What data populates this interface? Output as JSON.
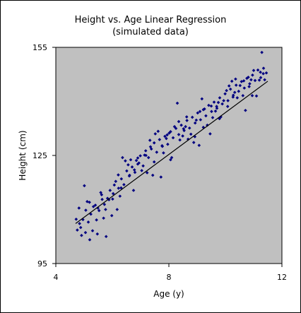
{
  "chart_data": {
    "type": "scatter",
    "title": "Height vs. Age Linear Regression",
    "subtitle": "(simulated data)",
    "xlabel": "Age (y)",
    "ylabel": "Height (cm)",
    "xlim": [
      4,
      12
    ],
    "ylim": [
      95,
      155
    ],
    "xticks": [
      4,
      8,
      12
    ],
    "yticks": [
      95,
      125,
      155
    ],
    "grid": false,
    "colors": {
      "plot_background": "#c0c0c0",
      "markers": "#000080",
      "regression_line": "#000000"
    },
    "regression_line": {
      "x": [
        4.7,
        11.5
      ],
      "y": [
        106.1,
        145.6
      ]
    },
    "series": [
      {
        "points": [
          [
            4.72,
            107.3
          ],
          [
            4.82,
            110.4
          ],
          [
            4.91,
            102.8
          ],
          [
            5.01,
            116.6
          ],
          [
            5.11,
            112.2
          ],
          [
            5.2,
            101.6
          ],
          [
            5.3,
            104.1
          ],
          [
            5.4,
            111.2
          ],
          [
            5.49,
            110.4
          ],
          [
            5.59,
            114.7
          ],
          [
            5.69,
            107.6
          ],
          [
            5.78,
            102.5
          ],
          [
            5.88,
            112.7
          ],
          [
            5.98,
            108.3
          ],
          [
            6.07,
            116.8
          ],
          [
            6.17,
            110.0
          ],
          [
            6.27,
            113.7
          ],
          [
            6.36,
            124.4
          ],
          [
            6.46,
            123.5
          ],
          [
            6.56,
            122.4
          ],
          [
            6.65,
            123.8
          ],
          [
            6.75,
            115.3
          ],
          [
            6.85,
            123.6
          ],
          [
            6.94,
            122.9
          ],
          [
            7.04,
            120.8
          ],
          [
            7.14,
            125.1
          ],
          [
            7.23,
            120.2
          ],
          [
            7.33,
            129.2
          ],
          [
            7.43,
            119.5
          ],
          [
            7.52,
            131.0
          ],
          [
            7.62,
            131.7
          ],
          [
            7.72,
            119.0
          ],
          [
            7.81,
            125.7
          ],
          [
            7.91,
            129.7
          ],
          [
            8.01,
            131.2
          ],
          [
            8.1,
            124.4
          ],
          [
            8.2,
            133.0
          ],
          [
            8.3,
            139.5
          ],
          [
            8.39,
            129.3
          ],
          [
            8.49,
            130.4
          ],
          [
            8.59,
            133.0
          ],
          [
            8.68,
            129.5
          ],
          [
            8.78,
            130.9
          ],
          [
            8.88,
            128.6
          ],
          [
            8.97,
            134.8
          ],
          [
            9.07,
            127.8
          ],
          [
            9.17,
            140.7
          ],
          [
            9.26,
            137.9
          ],
          [
            9.36,
            133.4
          ],
          [
            9.46,
            131.0
          ],
          [
            9.55,
            135.5
          ],
          [
            9.65,
            137.3
          ],
          [
            9.75,
            139.7
          ],
          [
            9.84,
            135.7
          ],
          [
            9.94,
            140.2
          ],
          [
            10.04,
            143.0
          ],
          [
            10.13,
            144.3
          ],
          [
            10.23,
            145.6
          ],
          [
            10.33,
            142.5
          ],
          [
            10.42,
            141.0
          ],
          [
            10.52,
            144.4
          ],
          [
            10.62,
            141.6
          ],
          [
            10.71,
            137.5
          ],
          [
            10.81,
            146.7
          ],
          [
            10.91,
            146.0
          ],
          [
            11.0,
            148.6
          ],
          [
            11.1,
            141.5
          ],
          [
            11.2,
            145.9
          ],
          [
            11.29,
            153.6
          ],
          [
            11.39,
            146.0
          ],
          [
            4.84,
            106.1
          ],
          [
            5.19,
            112.0
          ],
          [
            5.47,
            103.2
          ],
          [
            5.76,
            110.0
          ],
          [
            6.03,
            114.4
          ],
          [
            6.31,
            116.0
          ],
          [
            6.6,
            119.3
          ],
          [
            6.9,
            124.3
          ],
          [
            7.19,
            125.0
          ],
          [
            7.48,
            123.2
          ],
          [
            7.76,
            127.7
          ],
          [
            8.06,
            123.8
          ],
          [
            8.35,
            134.4
          ],
          [
            8.63,
            135.7
          ],
          [
            8.92,
            130.2
          ],
          [
            9.22,
            132.8
          ],
          [
            9.5,
            138.7
          ],
          [
            9.79,
            135.2
          ],
          [
            10.08,
            138.6
          ],
          [
            10.36,
            146.2
          ],
          [
            10.65,
            145.7
          ],
          [
            10.95,
            141.6
          ],
          [
            11.24,
            148.1
          ],
          [
            5.06,
            109.8
          ],
          [
            5.62,
            114.1
          ],
          [
            6.21,
            119.6
          ],
          [
            6.78,
            121.0
          ],
          [
            7.35,
            127.4
          ],
          [
            7.94,
            130.7
          ],
          [
            8.52,
            132.4
          ],
          [
            9.1,
            137.2
          ],
          [
            9.69,
            138.6
          ],
          [
            10.27,
            141.2
          ],
          [
            10.84,
            144.1
          ],
          [
            11.34,
            147.7
          ],
          [
            4.76,
            104.3
          ],
          [
            4.88,
            105.0
          ],
          [
            4.96,
            107.2
          ],
          [
            5.05,
            103.6
          ],
          [
            5.15,
            106.5
          ],
          [
            5.24,
            108.7
          ],
          [
            5.33,
            110.8
          ],
          [
            5.44,
            107.1
          ],
          [
            5.53,
            109.7
          ],
          [
            5.64,
            112.8
          ],
          [
            5.72,
            111.4
          ],
          [
            5.83,
            113.1
          ],
          [
            5.92,
            115.3
          ],
          [
            6.01,
            112.9
          ],
          [
            6.12,
            117.8
          ],
          [
            6.22,
            115.9
          ],
          [
            6.32,
            118.5
          ],
          [
            6.41,
            116.9
          ],
          [
            6.51,
            120.7
          ],
          [
            6.61,
            119.5
          ],
          [
            6.7,
            121.8
          ],
          [
            6.8,
            120.3
          ],
          [
            6.9,
            122.6
          ],
          [
            6.99,
            124.9
          ],
          [
            7.09,
            122.1
          ],
          [
            7.18,
            126.3
          ],
          [
            7.28,
            124.4
          ],
          [
            7.38,
            126.8
          ],
          [
            7.48,
            128.5
          ],
          [
            7.57,
            125.9
          ],
          [
            7.67,
            129.4
          ],
          [
            7.77,
            127.5
          ],
          [
            7.86,
            130.3
          ],
          [
            7.96,
            128.1
          ],
          [
            8.06,
            131.6
          ],
          [
            8.15,
            129.9
          ],
          [
            8.25,
            132.5
          ],
          [
            8.35,
            130.8
          ],
          [
            8.44,
            133.4
          ],
          [
            8.54,
            131.9
          ],
          [
            8.64,
            134.7
          ],
          [
            8.73,
            132.6
          ],
          [
            8.83,
            135.6
          ],
          [
            8.93,
            134.0
          ],
          [
            9.02,
            136.8
          ],
          [
            9.12,
            134.9
          ],
          [
            9.22,
            137.7
          ],
          [
            9.31,
            136.0
          ],
          [
            9.41,
            138.9
          ],
          [
            9.51,
            137.2
          ],
          [
            9.6,
            139.8
          ],
          [
            9.7,
            138.1
          ],
          [
            9.8,
            141.0
          ],
          [
            9.89,
            139.3
          ],
          [
            9.99,
            142.1
          ],
          [
            10.09,
            140.2
          ],
          [
            10.18,
            143.4
          ],
          [
            10.28,
            141.7
          ],
          [
            10.38,
            144.5
          ],
          [
            10.47,
            142.8
          ],
          [
            10.57,
            145.5
          ],
          [
            10.67,
            143.7
          ],
          [
            10.76,
            146.4
          ],
          [
            10.86,
            144.9
          ],
          [
            10.96,
            147.3
          ],
          [
            11.05,
            145.8
          ],
          [
            11.15,
            148.7
          ],
          [
            11.25,
            146.6
          ],
          [
            11.35,
            149.2
          ],
          [
            11.45,
            147.9
          ]
        ]
      }
    ]
  }
}
